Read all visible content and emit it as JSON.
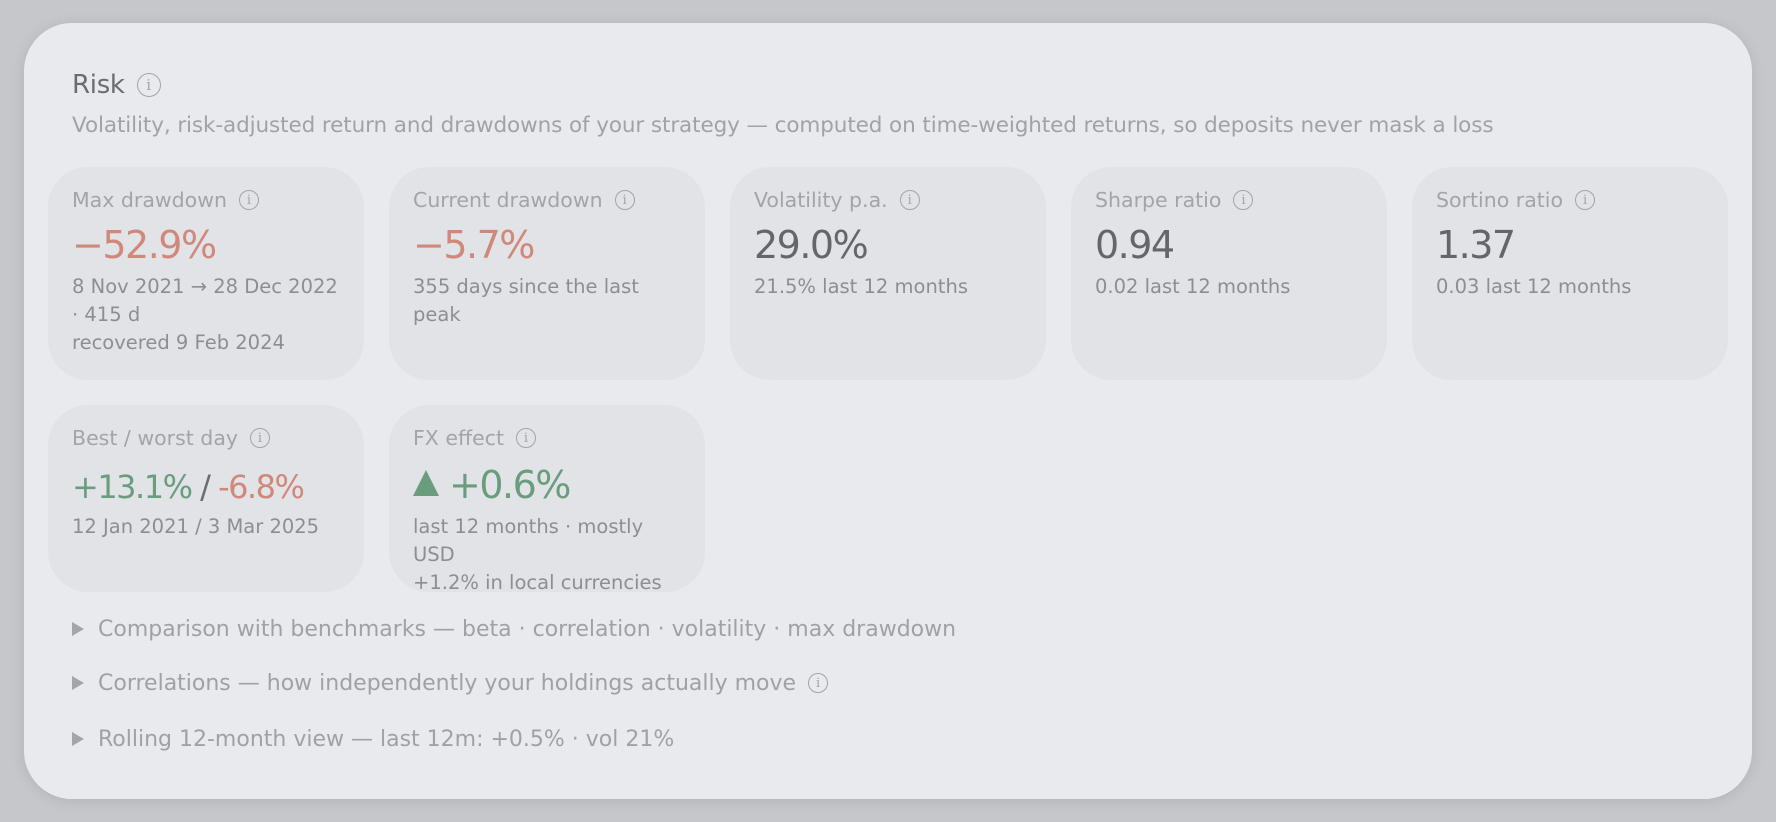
{
  "header": {
    "title": "Risk",
    "info_icon": "info-icon",
    "subtitle": "Volatility, risk-adjusted return and drawdowns of your strategy — computed on time-weighted returns, so deposits never mask a loss"
  },
  "cards": {
    "max_drawdown": {
      "label": "Max drawdown",
      "value": "−52.9%",
      "note1": "8 Nov 2021 → 28 Dec 2022 · 415 d",
      "note2": "recovered 9 Feb 2024"
    },
    "current_drawdown": {
      "label": "Current drawdown",
      "value": "−5.7%",
      "note1": "355 days since the last peak"
    },
    "volatility": {
      "label": "Volatility p.a.",
      "value": "29.0%",
      "note1": "21.5% last 12 months"
    },
    "sharpe": {
      "label": "Sharpe ratio",
      "value": "0.94",
      "note1": "0.02 last 12 months"
    },
    "sortino": {
      "label": "Sortino ratio",
      "value": "1.37",
      "note1": "0.03 last 12 months"
    },
    "best_worst": {
      "label": "Best / worst day",
      "best": "+13.1%",
      "separator": "/",
      "worst": "-6.8%",
      "note1": "12 Jan 2021 / 3 Mar 2025"
    },
    "fx_effect": {
      "label": "FX effect",
      "value": "+0.6%",
      "direction_icon": "triangle-up-icon",
      "note1": "last 12 months · mostly USD",
      "note2": "+1.2% in local currencies"
    }
  },
  "sections": {
    "benchmarks": "Comparison with benchmarks — beta · correlation · volatility · max drawdown",
    "correlations": "Correlations — how independently your holdings actually move",
    "rolling": "Rolling 12-month view — last 12m: +0.5% · vol 21%"
  },
  "colors": {
    "negative": "#d0887a",
    "positive": "#6a9d7e",
    "card_bg": "#e2e3e6",
    "panel_bg": "#e9eaed"
  }
}
